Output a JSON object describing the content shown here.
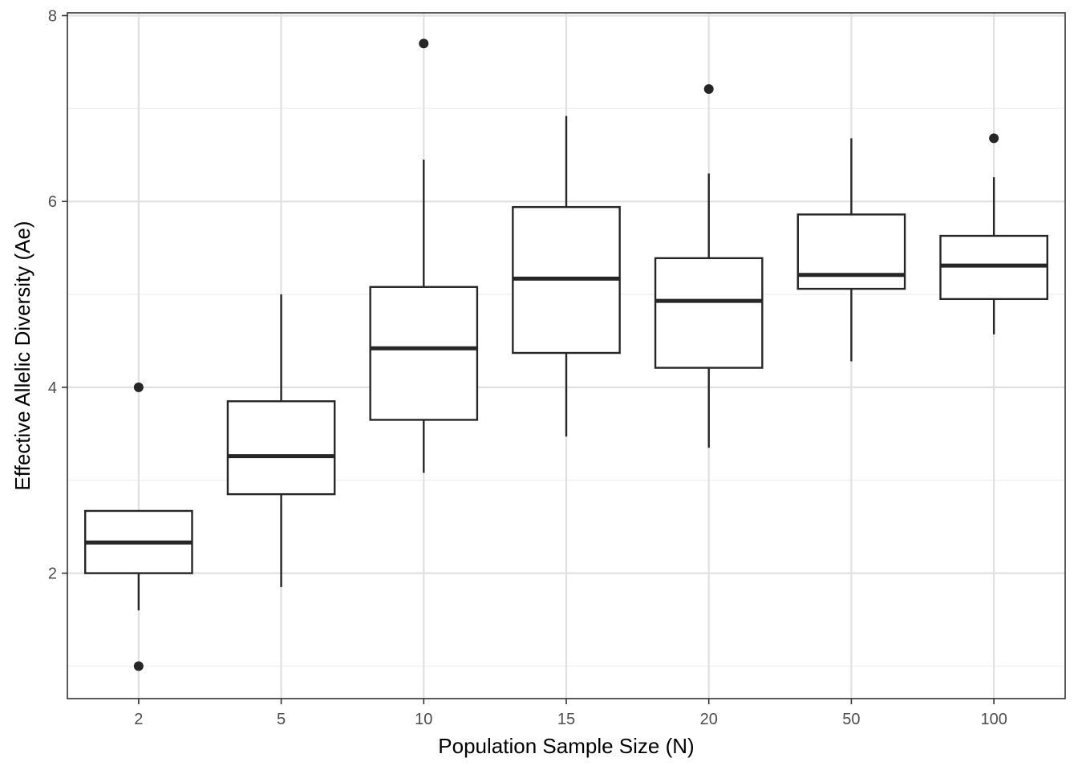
{
  "chart_data": {
    "type": "boxplot",
    "xlabel": "Population Sample Size (N)",
    "ylabel": "Effective Allelic Diversity (Ae)",
    "ylim": [
      0.65,
      8.03
    ],
    "yticks": [
      2,
      4,
      6,
      8
    ],
    "yticks_minor": [
      1,
      3,
      5,
      7
    ],
    "categories": [
      "2",
      "5",
      "10",
      "15",
      "20",
      "50",
      "100"
    ],
    "boxes": [
      {
        "category": "2",
        "whisker_low": 1.6,
        "q1": 2.0,
        "median": 2.33,
        "q3": 2.67,
        "whisker_high": 2.67,
        "outliers": [
          1.0,
          4.0
        ]
      },
      {
        "category": "5",
        "whisker_low": 1.85,
        "q1": 2.85,
        "median": 3.26,
        "q3": 3.85,
        "whisker_high": 5.0,
        "outliers": []
      },
      {
        "category": "10",
        "whisker_low": 3.08,
        "q1": 3.65,
        "median": 4.42,
        "q3": 5.08,
        "whisker_high": 6.45,
        "outliers": [
          7.7
        ]
      },
      {
        "category": "15",
        "whisker_low": 3.47,
        "q1": 4.37,
        "median": 5.17,
        "q3": 5.94,
        "whisker_high": 6.92,
        "outliers": []
      },
      {
        "category": "20",
        "whisker_low": 3.35,
        "q1": 4.21,
        "median": 4.93,
        "q3": 5.39,
        "whisker_high": 6.3,
        "outliers": [
          7.21
        ]
      },
      {
        "category": "50",
        "whisker_low": 4.28,
        "q1": 5.06,
        "median": 5.21,
        "q3": 5.86,
        "whisker_high": 6.68,
        "outliers": []
      },
      {
        "category": "100",
        "whisker_low": 4.57,
        "q1": 4.95,
        "median": 5.31,
        "q3": 5.63,
        "whisker_high": 6.26,
        "outliers": [
          6.68
        ]
      }
    ],
    "grid": true,
    "colors": {
      "box": "#262626",
      "grid_major": "#e0e0e0",
      "grid_minor": "#eeeeee",
      "panel_border": "#333333",
      "tick_label": "#4d4d4d"
    }
  }
}
